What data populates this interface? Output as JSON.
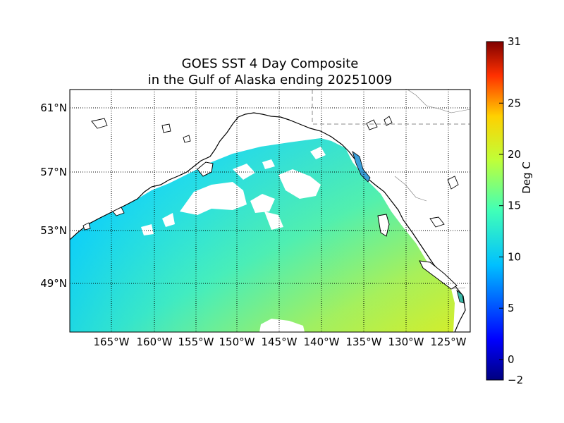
{
  "title": {
    "line1": "GOES SST 4 Day Composite",
    "line2": "in the Gulf of Alaska ending 20251009"
  },
  "map": {
    "lon_range": [
      -170,
      -123
    ],
    "lat_range": [
      46,
      62
    ],
    "lon_ticks": [
      "165°W",
      "160°W",
      "155°W",
      "150°W",
      "145°W",
      "140°W",
      "135°W",
      "130°W",
      "125°W"
    ],
    "lat_ticks": [
      "61°N",
      "57°N",
      "53°N",
      "49°N"
    ],
    "gridlines": "dotted",
    "land_color": "#ffffff",
    "coastline_color": "#000000",
    "border_style": "dashed"
  },
  "colorbar": {
    "label": "Deg C",
    "min": -2,
    "max": 31,
    "ticks": [
      "31",
      "25",
      "20",
      "15",
      "10",
      "5",
      "0",
      "−2"
    ],
    "colormap": "jet"
  },
  "sst_field": {
    "variable": "sea surface temperature",
    "units": "Deg C",
    "northwest_coastal_range": [
      8,
      10
    ],
    "central_gulf_range": [
      11,
      13
    ],
    "southeast_range": [
      15,
      17
    ],
    "cloud_masked_color": "#ffffff"
  }
}
